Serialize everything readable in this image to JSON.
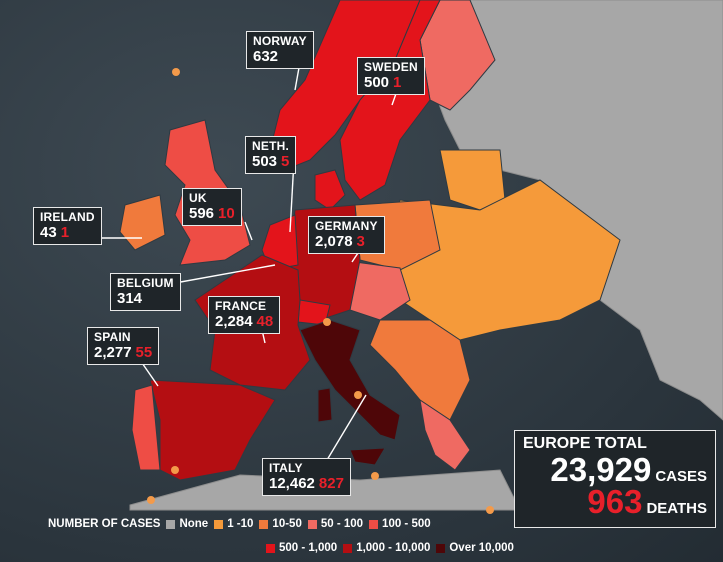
{
  "colors": {
    "none": "#a7a7a7",
    "1-10": "#f59a3a",
    "10-50": "#f07a3c",
    "50-100": "#ef6a62",
    "100-500": "#ee4d45",
    "500-1,000": "#e3141b",
    "1,000-10,000": "#b40e12",
    "over-10,000": "#4e0608",
    "sea": "#2f3a42",
    "label_bg": "#1f2529",
    "deaths_text": "#e8202a"
  },
  "callouts": [
    {
      "id": "norway",
      "name": "NORWAY",
      "cases": "632",
      "deaths": ""
    },
    {
      "id": "sweden",
      "name": "SWEDEN",
      "cases": "500",
      "deaths": "1"
    },
    {
      "id": "neth",
      "name": "NETH.",
      "cases": "503",
      "deaths": "5"
    },
    {
      "id": "uk",
      "name": "UK",
      "cases": "596",
      "deaths": "10"
    },
    {
      "id": "ireland",
      "name": "IRELAND",
      "cases": "43",
      "deaths": "1"
    },
    {
      "id": "germany",
      "name": "GERMANY",
      "cases": "2,078",
      "deaths": "3"
    },
    {
      "id": "belgium",
      "name": "BELGIUM",
      "cases": "314",
      "deaths": ""
    },
    {
      "id": "france",
      "name": "FRANCE",
      "cases": "2,284",
      "deaths": "48"
    },
    {
      "id": "spain",
      "name": "SPAIN",
      "cases": "2,277",
      "deaths": "55"
    },
    {
      "id": "italy",
      "name": "ITALY",
      "cases": "12,462",
      "deaths": "827"
    }
  ],
  "total": {
    "title": "EUROPE TOTAL",
    "cases": "23,929",
    "cases_label": "CASES",
    "deaths": "963",
    "deaths_label": "DEATHS"
  },
  "legend": {
    "title": "NUMBER OF CASES",
    "items": [
      {
        "label": "None",
        "color_key": "none"
      },
      {
        "label": "1 -10",
        "color_key": "1-10"
      },
      {
        "label": "10-50",
        "color_key": "10-50"
      },
      {
        "label": "50 - 100",
        "color_key": "50-100"
      },
      {
        "label": "100 - 500",
        "color_key": "100-500"
      },
      {
        "label": "500 - 1,000",
        "color_key": "500-1,000"
      },
      {
        "label": "1,000 - 10,000",
        "color_key": "1,000-10,000"
      },
      {
        "label": "Over 10,000",
        "color_key": "over-10,000"
      }
    ]
  }
}
